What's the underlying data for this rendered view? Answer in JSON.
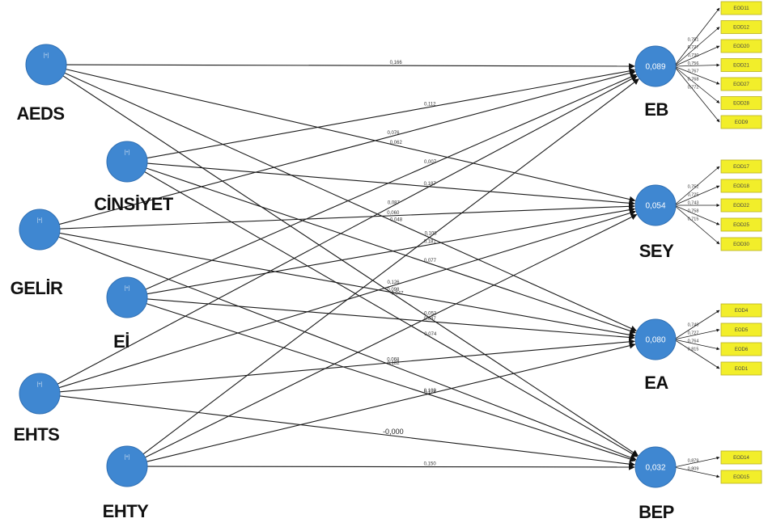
{
  "diagram": {
    "exogenous": [
      {
        "id": "AEDS",
        "label": "AEDS",
        "tag": "[+]"
      },
      {
        "id": "CINSIYET",
        "label": "CİNSİYET",
        "tag": "[+]"
      },
      {
        "id": "GELIR",
        "label": "GELİR",
        "tag": "[+]"
      },
      {
        "id": "EI",
        "label": "Eİ",
        "tag": "[+]"
      },
      {
        "id": "EHTS",
        "label": "EHTS",
        "tag": "[+]"
      },
      {
        "id": "EHTY",
        "label": "EHTY",
        "tag": "[+]"
      }
    ],
    "endogenous": [
      {
        "id": "EB",
        "label": "EB",
        "r2": "0,089",
        "indicators": [
          "EOD11",
          "EOD12",
          "EOD20",
          "EOD21",
          "EOD27",
          "EOD28",
          "EOD9"
        ],
        "loadings": [
          "0,751",
          "0,727",
          "0,730",
          "0,756",
          "0,767",
          "0,768",
          "0,772"
        ]
      },
      {
        "id": "SEY",
        "label": "SEY",
        "r2": "0,054",
        "indicators": [
          "EOD17",
          "EOD18",
          "EOD22",
          "EOD25",
          "EOD30"
        ],
        "loadings": [
          "0,752",
          "0,725",
          "0,743",
          "0,758",
          "0,715"
        ]
      },
      {
        "id": "EA",
        "label": "EA",
        "r2": "0,080",
        "indicators": [
          "EOD4",
          "EOD5",
          "EOD6",
          "EOD1"
        ],
        "loadings": [
          "0,749",
          "0,727",
          "0,764",
          "0,815"
        ]
      },
      {
        "id": "BEP",
        "label": "BEP",
        "r2": "0,032",
        "indicators": [
          "EOD14",
          "EOD15"
        ],
        "loadings": [
          "0,879",
          "0,809"
        ]
      }
    ],
    "paths": [
      {
        "from": "AEDS",
        "to": "EB",
        "value": "0,166"
      },
      {
        "from": "AEDS",
        "to": "SEY",
        "value": "0,062"
      },
      {
        "from": "AEDS",
        "to": "EA",
        "value": "0,048"
      },
      {
        "from": "AEDS",
        "to": "BEP",
        "value": "-0,047"
      },
      {
        "from": "CINSIYET",
        "to": "EB",
        "value": "0,112"
      },
      {
        "from": "CINSIYET",
        "to": "SEY",
        "value": "0,187"
      },
      {
        "from": "CINSIYET",
        "to": "EA",
        "value": "0,077"
      },
      {
        "from": "CINSIYET",
        "to": "BEP",
        "value": "0,074"
      },
      {
        "from": "GELIR",
        "to": "EB",
        "value": "0,076"
      },
      {
        "from": "GELIR",
        "to": "SEY",
        "value": "0,060"
      },
      {
        "from": "GELIR",
        "to": "EA",
        "value": "0,098"
      },
      {
        "from": "GELIR",
        "to": "BEP",
        "value": "0,182"
      },
      {
        "from": "EI",
        "to": "EB",
        "value": "0,007"
      },
      {
        "from": "EI",
        "to": "SEY",
        "value": "0,181"
      },
      {
        "from": "EI",
        "to": "EA",
        "value": "0,047"
      },
      {
        "from": "EI",
        "to": "BEP",
        "value": "0,124"
      },
      {
        "from": "EHTS",
        "to": "EB",
        "value": "0,087"
      },
      {
        "from": "EHTS",
        "to": "SEY",
        "value": "0,126"
      },
      {
        "from": "EHTS",
        "to": "EA",
        "value": "0,068"
      },
      {
        "from": "EHTS",
        "to": "BEP",
        "value": "-0,000"
      },
      {
        "from": "EHTY",
        "to": "EB",
        "value": "0,108"
      },
      {
        "from": "EHTY",
        "to": "SEY",
        "value": "0,052"
      },
      {
        "from": "EHTY",
        "to": "EA",
        "value": "0,109"
      },
      {
        "from": "EHTY",
        "to": "BEP",
        "value": "0,150"
      }
    ]
  }
}
